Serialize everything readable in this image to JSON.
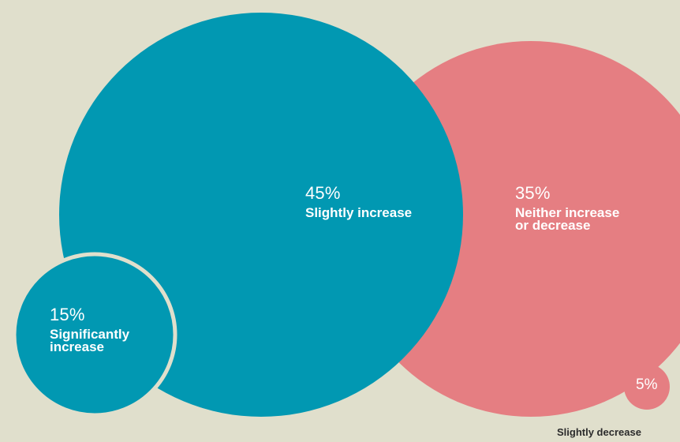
{
  "chart_data": {
    "type": "bubble",
    "title": "",
    "series": [
      {
        "category": "Significantly increase",
        "value": 15,
        "label": "15%",
        "color": "#0198b2"
      },
      {
        "category": "Slightly increase",
        "value": 45,
        "label": "45%",
        "color": "#0198b2"
      },
      {
        "category": "Neither increase or decrease",
        "label": "35%",
        "value": 35,
        "color": "#e57e82"
      },
      {
        "category": "Slightly decrease",
        "value": 5,
        "label": "5%",
        "color": "#e57e82"
      }
    ],
    "legend": "none"
  },
  "labels": {
    "sig_pct": "15%",
    "sig_line1": "Significantly",
    "sig_line2": "increase",
    "slight_pct": "45%",
    "slight_cat": "Slightly increase",
    "neither_pct": "35%",
    "neither_line1": "Neither increase",
    "neither_line2": "or decrease",
    "dec_pct": "5%",
    "dec_cat": "Slightly decrease"
  },
  "colors": {
    "background": "#e0dfcc",
    "increase": "#0198b2",
    "decrease": "#e57e82"
  }
}
